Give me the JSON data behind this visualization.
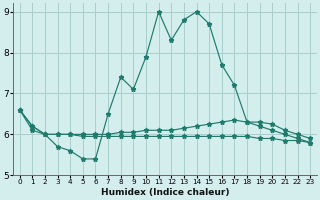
{
  "xlabel": "Humidex (Indice chaleur)",
  "background_color": "#d4eeed",
  "grid_color": "#a8cece",
  "line_color": "#1e7b6e",
  "xlim": [
    -0.5,
    23.5
  ],
  "ylim": [
    5.0,
    9.2
  ],
  "yticks": [
    5,
    6,
    7,
    8,
    9
  ],
  "xticks": [
    0,
    1,
    2,
    3,
    4,
    5,
    6,
    7,
    8,
    9,
    10,
    11,
    12,
    13,
    14,
    15,
    16,
    17,
    18,
    19,
    20,
    21,
    22,
    23
  ],
  "series1": {
    "x": [
      0,
      1,
      2,
      3,
      4,
      5,
      6,
      7,
      8,
      9,
      10,
      11,
      12,
      13,
      14,
      15,
      16,
      17,
      18,
      19,
      20,
      21,
      22,
      23
    ],
    "y": [
      6.6,
      6.2,
      6.0,
      5.7,
      5.6,
      5.4,
      5.4,
      6.5,
      7.4,
      7.1,
      7.9,
      9.0,
      8.3,
      8.8,
      9.0,
      8.7,
      7.7,
      7.2,
      6.3,
      6.2,
      6.1,
      6.0,
      5.9,
      5.8
    ]
  },
  "series2": {
    "x": [
      0,
      1,
      2,
      3,
      4,
      5,
      6,
      7,
      8,
      9,
      10,
      11,
      12,
      13,
      14,
      15,
      16,
      17,
      18,
      19,
      20,
      21,
      22,
      23
    ],
    "y": [
      6.6,
      6.2,
      6.0,
      6.0,
      6.0,
      6.0,
      6.0,
      6.0,
      6.05,
      6.05,
      6.1,
      6.1,
      6.1,
      6.15,
      6.2,
      6.25,
      6.3,
      6.35,
      6.3,
      6.3,
      6.25,
      6.1,
      6.0,
      5.9
    ]
  },
  "series3": {
    "x": [
      0,
      1,
      2,
      3,
      4,
      5,
      6,
      7,
      8,
      9,
      10,
      11,
      12,
      13,
      14,
      15,
      16,
      17,
      18,
      19,
      20,
      21,
      22,
      23
    ],
    "y": [
      6.6,
      6.1,
      6.0,
      6.0,
      6.0,
      5.95,
      5.95,
      5.95,
      5.95,
      5.95,
      5.95,
      5.95,
      5.95,
      5.95,
      5.95,
      5.95,
      5.95,
      5.95,
      5.95,
      5.9,
      5.9,
      5.85,
      5.85,
      5.8
    ]
  },
  "marker_style": "*",
  "marker_size": 3.5,
  "line_width": 0.85
}
